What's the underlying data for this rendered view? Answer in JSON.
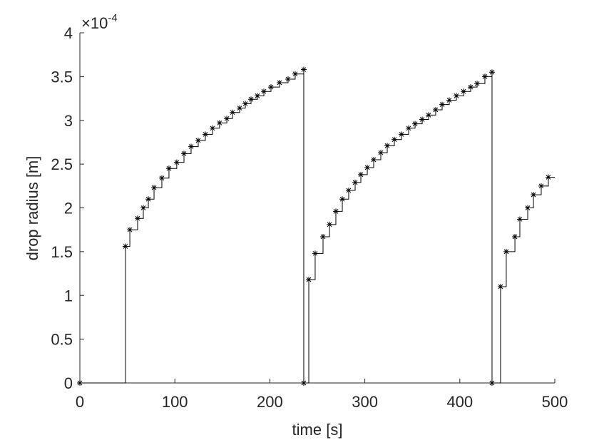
{
  "chart_data": {
    "type": "stairs",
    "x_label": "time [s]",
    "y_label": "drop radius [m]",
    "y_scale_base": "×10",
    "y_scale_exponent": "-4",
    "xlim": [
      0,
      500
    ],
    "xticks": [
      0,
      100,
      200,
      300,
      400,
      500
    ],
    "ylim": [
      0,
      4
    ],
    "yticks": [
      0,
      0.5,
      1,
      1.5,
      2,
      2.5,
      3,
      3.5,
      4
    ],
    "color": "#000000",
    "marker": "*",
    "x": [
      0,
      48,
      52.6,
      60.8,
      66.8,
      72.1,
      78.1,
      86.3,
      93.8,
      102,
      109.6,
      117.1,
      124.6,
      132.1,
      139.6,
      147.1,
      154.7,
      160.7,
      168.2,
      174.2,
      180.2,
      186.9,
      193.7,
      201.2,
      210.2,
      219.2,
      226.7,
      235.7,
      235.7,
      241,
      247.7,
      256,
      262.8,
      269.5,
      276.3,
      283,
      289.8,
      295.8,
      302.6,
      309.3,
      316.8,
      323.6,
      331.1,
      338.6,
      346.1,
      352.9,
      360.4,
      367.1,
      374.6,
      381.4,
      388.9,
      396.4,
      403.9,
      411.4,
      418.2,
      426.4,
      433.9,
      433.9,
      442.9,
      448.9,
      458,
      463.2,
      471.5,
      477.5,
      485.7,
      493.2
    ],
    "values": [
      0,
      1.56,
      1.75,
      1.88,
      2.0,
      2.1,
      2.23,
      2.34,
      2.45,
      2.52,
      2.62,
      2.7,
      2.77,
      2.84,
      2.91,
      2.97,
      3.02,
      3.09,
      3.14,
      3.19,
      3.24,
      3.28,
      3.33,
      3.38,
      3.43,
      3.47,
      3.53,
      3.58,
      0,
      1.18,
      1.48,
      1.67,
      1.81,
      1.96,
      2.1,
      2.2,
      2.29,
      2.38,
      2.46,
      2.55,
      2.63,
      2.71,
      2.78,
      2.84,
      2.91,
      2.96,
      3.01,
      3.06,
      3.12,
      3.18,
      3.23,
      3.28,
      3.33,
      3.38,
      3.42,
      3.5,
      3.55,
      0,
      1.1,
      1.5,
      1.67,
      1.87,
      2.0,
      2.15,
      2.25,
      2.35
    ]
  }
}
